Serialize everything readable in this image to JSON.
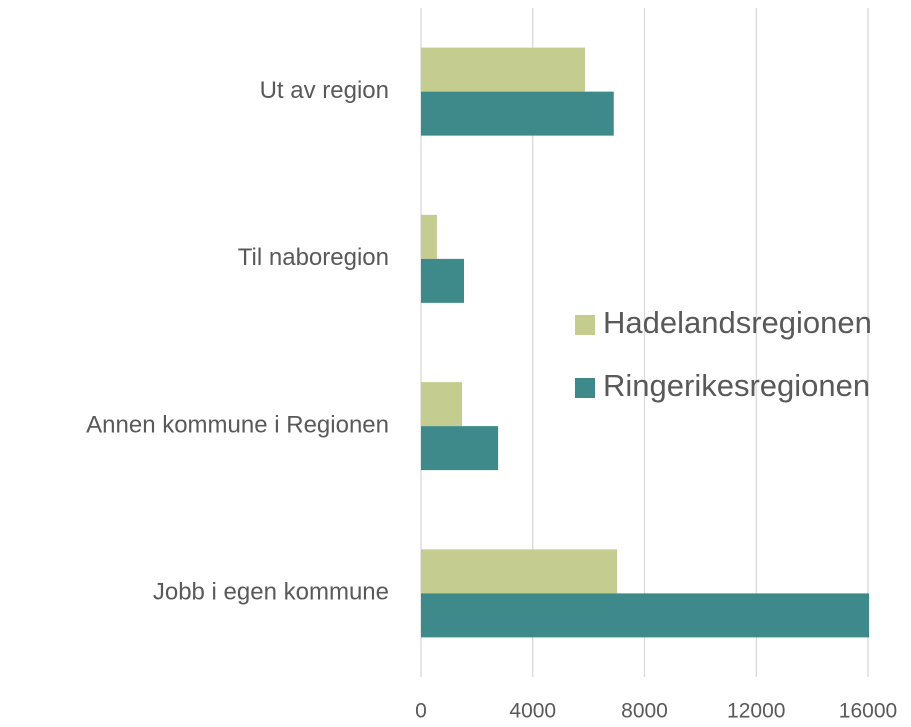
{
  "chart_data": {
    "type": "barh",
    "categories": [
      "Ut av region",
      "Til naboregion",
      "Annen kommune i Regionen",
      "Jobb i egen kommune"
    ],
    "series": [
      {
        "name": "Hadelandsregionen",
        "color": "#c5cc8f",
        "values": [
          5870,
          570,
          1470,
          7020
        ]
      },
      {
        "name": "Ringerikesregionen",
        "color": "#3e8a8a",
        "values": [
          6900,
          1540,
          2760,
          16040
        ]
      }
    ],
    "xlim": [
      0,
      16000
    ],
    "xticks": [
      0,
      4000,
      8000,
      12000,
      16000
    ],
    "grid": true,
    "legend": "right"
  }
}
